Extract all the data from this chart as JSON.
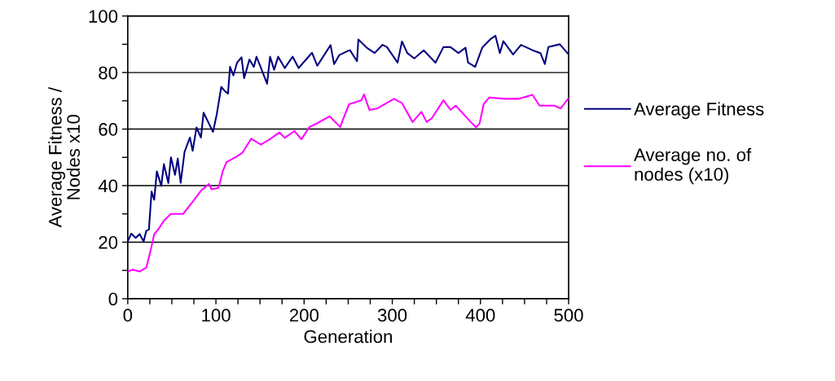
{
  "chart_data": {
    "type": "line",
    "xlabel": "Generation",
    "ylabel": "Average Fitness /\nNodes x10",
    "xlim": [
      0,
      500
    ],
    "ylim": [
      0,
      100
    ],
    "xticks": [
      0,
      {
        "value": 25,
        "label": null
      },
      {
        "value": 50,
        "label": null
      },
      {
        "value": 75,
        "label": null
      },
      100,
      {
        "value": 125,
        "label": null
      },
      {
        "value": 150,
        "label": null
      },
      {
        "value": 175,
        "label": null
      },
      200,
      {
        "value": 225,
        "label": null
      },
      {
        "value": 250,
        "label": null
      },
      {
        "value": 275,
        "label": null
      },
      300,
      {
        "value": 325,
        "label": null
      },
      {
        "value": 350,
        "label": null
      },
      {
        "value": 375,
        "label": null
      },
      400,
      {
        "value": 425,
        "label": null
      },
      {
        "value": 450,
        "label": null
      },
      {
        "value": 475,
        "label": null
      },
      500
    ],
    "yticks": [
      0,
      {
        "value": 10,
        "label": null
      },
      20,
      {
        "value": 30,
        "label": null
      },
      40,
      {
        "value": 50,
        "label": null
      },
      60,
      {
        "value": 70,
        "label": null
      },
      80,
      {
        "value": 90,
        "label": null
      },
      100
    ],
    "grid": "y",
    "legend": "right",
    "marker": "none",
    "line_style": "solid",
    "series": [
      {
        "name": "Average Fitness",
        "color": "#000080",
        "x": [
          0,
          4,
          9,
          13.5,
          18,
          21,
          24,
          27,
          30,
          33,
          38,
          41,
          46,
          49,
          53.6,
          56.7,
          60,
          64.4,
          70.5,
          73.6,
          78,
          83,
          86,
          92,
          96.7,
          101,
          106,
          110.6,
          113.7,
          116,
          119.8,
          124,
          129,
          132,
          138,
          143,
          146,
          150.6,
          158,
          161.4,
          166,
          170.6,
          178,
          187,
          193.8,
          209,
          215,
          230,
          234,
          240,
          250,
          252,
          260,
          261.5,
          271,
          280,
          289,
          294,
          306,
          311,
          317,
          325,
          335.6,
          349,
          358,
          366,
          375,
          383,
          386,
          394,
          402,
          411,
          417,
          422,
          426,
          437,
          446,
          459,
          468,
          473,
          477,
          490,
          500
        ],
        "values": [
          20.3,
          23,
          21.5,
          22.9,
          20.2,
          24,
          24.5,
          37.9,
          35,
          45,
          39.9,
          47.6,
          40.9,
          50,
          43.8,
          49.6,
          41,
          51.9,
          57,
          52.3,
          60.6,
          57,
          65.8,
          62,
          59,
          65.3,
          74.9,
          73.3,
          72.6,
          82,
          79,
          83.5,
          85.4,
          78,
          84.6,
          82,
          85.6,
          82,
          76,
          85.6,
          81,
          85.6,
          81.6,
          85.6,
          81.6,
          87,
          82.4,
          89.7,
          83,
          86.2,
          87.7,
          87.9,
          84,
          91.7,
          88.8,
          86.9,
          89.8,
          89,
          83.5,
          91,
          86.9,
          85,
          87.9,
          83.5,
          89,
          89,
          86.9,
          88.8,
          83.5,
          82,
          88.8,
          91.7,
          93,
          86.9,
          91.1,
          86.4,
          89.8,
          87.9,
          86.9,
          83,
          89,
          90,
          86.4
        ]
      },
      {
        "name": "Average no. of\nnodes (x10)",
        "color": "#ff00ff",
        "x": [
          0,
          5.6,
          13.5,
          21,
          25.9,
          30,
          35,
          41,
          49,
          62.8,
          73.6,
          83,
          92,
          95,
          103,
          107.6,
          112,
          123,
          130,
          140,
          151,
          161,
          172,
          178,
          189,
          197,
          206,
          215,
          229,
          241,
          243,
          251,
          265,
          268,
          274,
          283,
          302,
          311,
          323,
          333,
          339,
          345,
          358,
          366,
          372,
          389,
          395,
          399,
          403.6,
          410,
          428,
          443,
          459,
          467,
          484,
          491,
          500
        ],
        "values": [
          9.6,
          10.3,
          9.6,
          11,
          17,
          22.8,
          24.7,
          27.6,
          30,
          30,
          34.3,
          38.2,
          40.6,
          38.7,
          39.2,
          45,
          48.3,
          50.2,
          51.6,
          56.6,
          54.5,
          56.4,
          58.8,
          56.9,
          59.3,
          56.4,
          60.7,
          62.1,
          64.5,
          60.7,
          62.5,
          68.8,
          70.2,
          72.3,
          66.8,
          67.3,
          70.7,
          69.2,
          62.5,
          66.1,
          62.5,
          63.9,
          70.2,
          66.8,
          68.3,
          62.5,
          60.6,
          62,
          68.8,
          71.2,
          70.7,
          70.7,
          72.1,
          68.3,
          68.3,
          67.3,
          71
        ]
      }
    ]
  }
}
